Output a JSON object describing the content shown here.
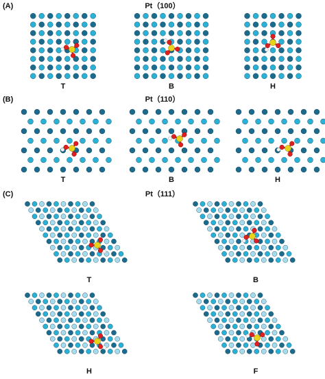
{
  "panels": [
    {
      "label": "(A)",
      "title": "Pt（100）",
      "views": [
        "T",
        "B",
        "H"
      ]
    },
    {
      "label": "(B)",
      "title": "Pt（110）",
      "views": [
        "T",
        "B",
        "H"
      ]
    },
    {
      "label": "(C)",
      "title": "Pt（111）",
      "views": [
        "T",
        "B",
        "H",
        "F"
      ]
    }
  ]
}
